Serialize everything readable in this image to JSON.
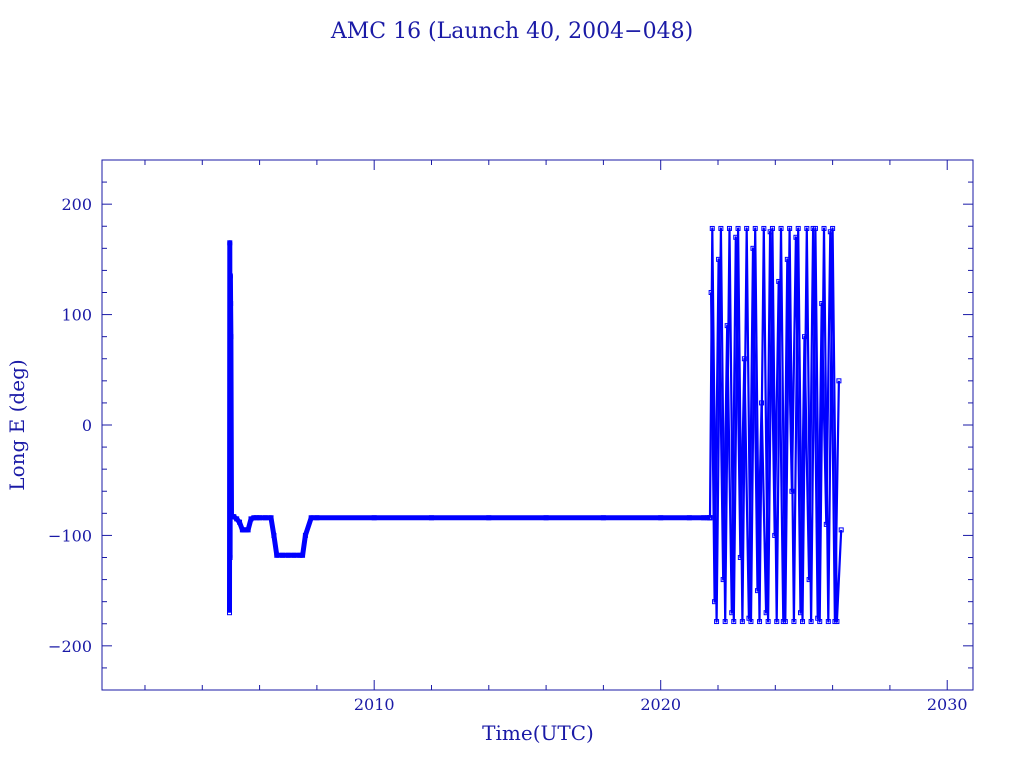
{
  "chart_data": {
    "type": "line",
    "title": "AMC 16 (Launch 40, 2004−048)",
    "xlabel": "Time(UTC)",
    "ylabel": "Long E (deg)",
    "xlim": [
      2000.5,
      2030.9
    ],
    "ylim": [
      -240,
      240
    ],
    "x_ticks": [
      2010,
      2020,
      2030
    ],
    "y_ticks": [
      200,
      100,
      0,
      -100,
      -200
    ],
    "x_tick_labels": [
      "2010",
      "2020",
      "2030"
    ],
    "y_tick_labels": [
      "200",
      "100",
      "0",
      "−100",
      "−200"
    ],
    "grid": false,
    "series_color": "#0000ff",
    "axis_color": "#1a1aa6",
    "series": [
      {
        "x": [
          2004.95,
          2004.96,
          2004.97,
          2004.98,
          2004.99,
          2005.0,
          2005.02,
          2005.05,
          2005.1,
          2005.2,
          2005.3,
          2005.4,
          2005.45,
          2005.5,
          2005.6,
          2005.7,
          2005.8,
          2005.9,
          2006.0,
          2006.2,
          2006.4,
          2006.5,
          2006.6,
          2006.8,
          2007.0,
          2007.2,
          2007.4,
          2007.5,
          2007.6,
          2007.8,
          2008.0,
          2010.0,
          2012.0,
          2014.0,
          2016.0,
          2018.0,
          2020.0,
          2021.0,
          2021.5,
          2021.65,
          2021.7,
          2021.72
        ],
        "y": [
          -170,
          165,
          -120,
          135,
          110,
          80,
          -83,
          -83,
          -83,
          -85,
          -88,
          -95,
          -95,
          -95,
          -95,
          -85,
          -84,
          -84,
          -84,
          -84,
          -84,
          -100,
          -118,
          -118,
          -118,
          -118,
          -118,
          -118,
          -100,
          -84,
          -84,
          -84,
          -84,
          -84,
          -84,
          -84,
          -84,
          -84,
          -84,
          -84,
          -84,
          -84
        ]
      },
      {
        "x": [
          2021.72,
          2021.8,
          2021.95,
          2022.1,
          2022.25,
          2022.4,
          2022.55,
          2022.7,
          2022.85,
          2023.0,
          2023.15,
          2023.3,
          2023.45,
          2023.6,
          2023.75,
          2023.9,
          2024.05,
          2024.2,
          2024.35,
          2024.5,
          2024.65,
          2024.8,
          2024.95,
          2025.1,
          2025.25,
          2025.4,
          2025.55,
          2025.7,
          2025.85,
          2026.0,
          2026.15,
          2026.3
        ],
        "y": [
          -84,
          178,
          -178,
          178,
          -178,
          178,
          -178,
          178,
          -178,
          178,
          -178,
          178,
          -178,
          178,
          -178,
          178,
          -178,
          178,
          -178,
          178,
          -178,
          178,
          -178,
          178,
          -178,
          178,
          -178,
          178,
          -178,
          178,
          -178,
          -95
        ]
      },
      {
        "x": [
          2021.76,
          2021.88,
          2022.02,
          2022.18,
          2022.32,
          2022.48,
          2022.62,
          2022.78,
          2022.92,
          2023.08,
          2023.22,
          2023.38,
          2023.52,
          2023.68,
          2023.82,
          2023.98,
          2024.12,
          2024.28,
          2024.42,
          2024.58,
          2024.72,
          2024.88,
          2025.02,
          2025.18,
          2025.32,
          2025.48,
          2025.62,
          2025.78,
          2025.92,
          2026.08,
          2026.22
        ],
        "y": [
          120,
          -160,
          150,
          -140,
          90,
          -170,
          170,
          -120,
          60,
          -175,
          160,
          -150,
          20,
          -170,
          175,
          -100,
          130,
          -178,
          150,
          -60,
          170,
          -170,
          80,
          -140,
          178,
          -175,
          110,
          -90,
          175,
          -178,
          40
        ]
      }
    ]
  }
}
